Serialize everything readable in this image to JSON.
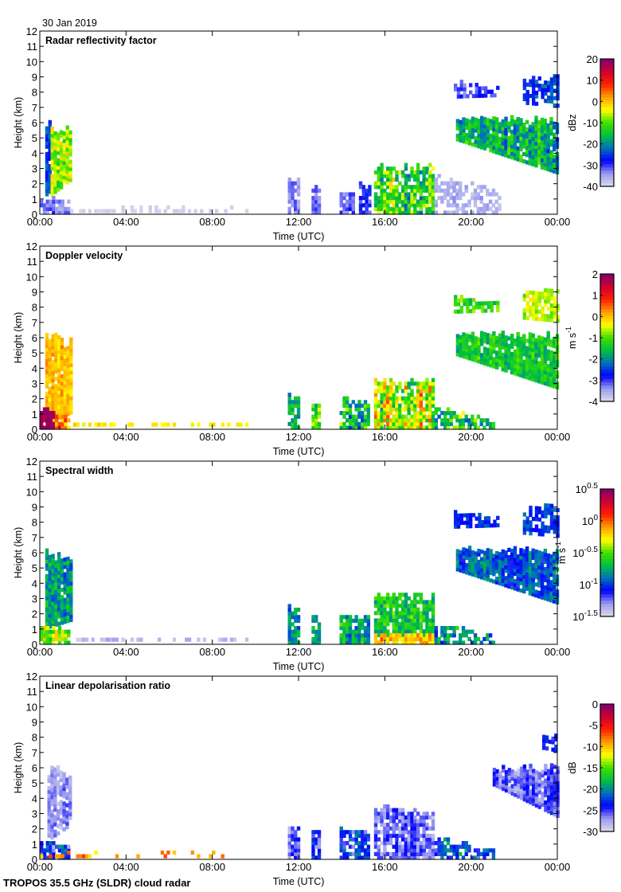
{
  "figure": {
    "date": "30 Jan 2019",
    "footer": "TROPOS 35.5 GHz (SLDR) cloud radar"
  },
  "chart_data": [
    {
      "type": "heatmap",
      "title": "Radar reflectivity factor",
      "xlabel": "Time (UTC)",
      "ylabel": "Height (km)",
      "xlim": [
        0,
        24
      ],
      "ylim": [
        0,
        12
      ],
      "xticks": [
        0,
        4,
        8,
        12,
        16,
        20,
        24
      ],
      "xtick_labels": [
        "00:00",
        "04:00",
        "08:00",
        "12:00",
        "16:00",
        "20:00",
        "00:00"
      ],
      "yticks": [
        0,
        1,
        2,
        3,
        4,
        5,
        6,
        7,
        8,
        9,
        10,
        11,
        12
      ],
      "ytick_labels": [
        "0",
        "1",
        "2",
        "3",
        "4",
        "5",
        "6",
        "7",
        "8",
        "9",
        "10",
        "11",
        "12"
      ],
      "colorbar": {
        "unit": {
          "text": "dBz",
          "sup": ""
        },
        "range": [
          -40,
          20
        ],
        "ticks": [
          20,
          10,
          0,
          -10,
          -20,
          -30,
          -40
        ],
        "tick_labels": [
          {
            "text": "20",
            "sup": ""
          },
          {
            "text": "10",
            "sup": ""
          },
          {
            "text": "0",
            "sup": ""
          },
          {
            "text": "-10",
            "sup": ""
          },
          {
            "text": "-20",
            "sup": ""
          },
          {
            "text": "-30",
            "sup": ""
          },
          {
            "text": "-40",
            "sup": ""
          }
        ]
      },
      "echoes_format": "[t_start_h, t_end_h, base_start_km, top_start_km, base_end_km, top_end_km, mean_value, noise, fill]",
      "echoes": [
        [
          0.25,
          0.5,
          1.2,
          6.3,
          1.5,
          6.2,
          -24,
          8,
          0.9
        ],
        [
          0.5,
          1.4,
          1.2,
          6.1,
          2.2,
          5.8,
          -8,
          12,
          0.95
        ],
        [
          0.0,
          1.4,
          0.0,
          1.1,
          0.0,
          0.8,
          -32,
          6,
          0.8
        ],
        [
          1.4,
          9.6,
          0.1,
          0.35,
          0.1,
          0.35,
          -39,
          1,
          0.5
        ],
        [
          11.5,
          12.0,
          0.0,
          2.6,
          0.0,
          2.2,
          -33,
          5,
          0.8
        ],
        [
          12.6,
          13.0,
          0.0,
          2.0,
          0.0,
          1.6,
          -32,
          5,
          0.8
        ],
        [
          13.9,
          14.5,
          0.0,
          1.5,
          0.0,
          1.5,
          -31,
          5,
          0.8
        ],
        [
          14.8,
          15.3,
          0.0,
          2.1,
          0.0,
          1.8,
          -28,
          8,
          0.8
        ],
        [
          15.5,
          18.3,
          0.0,
          3.2,
          0.0,
          3.3,
          -12,
          16,
          0.85
        ],
        [
          18.3,
          21.3,
          0.0,
          2.6,
          0.0,
          1.5,
          -36,
          4,
          0.6
        ],
        [
          19.2,
          21.3,
          7.6,
          8.7,
          7.7,
          8.2,
          -30,
          6,
          0.7
        ],
        [
          19.3,
          24.0,
          4.8,
          6.3,
          2.6,
          6.3,
          -18,
          12,
          0.95
        ],
        [
          22.4,
          24.0,
          7.2,
          9.0,
          7.0,
          9.2,
          -26,
          8,
          0.7
        ]
      ]
    },
    {
      "type": "heatmap",
      "title": "Doppler velocity",
      "xlabel": "Time (UTC)",
      "ylabel": "Height (km)",
      "xlim": [
        0,
        24
      ],
      "ylim": [
        0,
        12
      ],
      "xticks": [
        0,
        4,
        8,
        12,
        16,
        20,
        24
      ],
      "xtick_labels": [
        "00:00",
        "04:00",
        "08:00",
        "12:00",
        "16:00",
        "20:00",
        "00:00"
      ],
      "yticks": [
        0,
        1,
        2,
        3,
        4,
        5,
        6,
        7,
        8,
        9,
        10,
        11,
        12
      ],
      "ytick_labels": [
        "0",
        "1",
        "2",
        "3",
        "4",
        "5",
        "6",
        "7",
        "8",
        "9",
        "10",
        "11",
        "12"
      ],
      "colorbar": {
        "unit": {
          "text": "m s",
          "sup": "-1"
        },
        "range": [
          -4,
          2
        ],
        "ticks": [
          2,
          1,
          0,
          -1,
          -2,
          -3,
          -4
        ],
        "tick_labels": [
          {
            "text": "2",
            "sup": ""
          },
          {
            "text": "1",
            "sup": ""
          },
          {
            "text": "0",
            "sup": ""
          },
          {
            "text": "-1",
            "sup": ""
          },
          {
            "text": "-2",
            "sup": ""
          },
          {
            "text": "-3",
            "sup": ""
          },
          {
            "text": "-4",
            "sup": ""
          }
        ]
      },
      "echoes_format": "[t_start_h, t_end_h, base_start_km, top_start_km, base_end_km, top_end_km, mean_value, noise, fill]",
      "echoes": [
        [
          0.25,
          1.4,
          0.3,
          6.4,
          1.0,
          6.1,
          0.0,
          0.6,
          0.95
        ],
        [
          0.0,
          0.7,
          0.0,
          1.3,
          0.0,
          1.3,
          1.8,
          0.4,
          0.9
        ],
        [
          0.7,
          1.4,
          0.0,
          1.0,
          0.0,
          0.8,
          0.3,
          1.5,
          0.8
        ],
        [
          1.4,
          9.6,
          0.2,
          0.4,
          0.2,
          0.4,
          -0.3,
          0.4,
          0.5
        ],
        [
          11.5,
          12.0,
          0.0,
          2.7,
          0.0,
          2.2,
          -1.6,
          1.0,
          0.8
        ],
        [
          12.6,
          13.0,
          0.0,
          2.0,
          0.0,
          1.6,
          -1.2,
          1.4,
          0.8
        ],
        [
          13.9,
          15.3,
          0.0,
          2.0,
          0.0,
          1.8,
          -1.5,
          1.8,
          0.8
        ],
        [
          15.5,
          18.3,
          0.0,
          3.3,
          0.0,
          3.3,
          -0.6,
          1.8,
          0.85
        ],
        [
          18.3,
          21.0,
          0.0,
          1.5,
          0.0,
          0.6,
          -1.5,
          1.6,
          0.6
        ],
        [
          19.2,
          21.3,
          7.6,
          8.7,
          7.7,
          8.2,
          -1.2,
          0.8,
          0.7
        ],
        [
          19.3,
          24.0,
          4.8,
          6.3,
          2.6,
          6.3,
          -1.4,
          0.8,
          0.95
        ],
        [
          22.4,
          24.0,
          7.2,
          9.0,
          7.0,
          9.2,
          -0.6,
          0.6,
          0.7
        ]
      ]
    },
    {
      "type": "heatmap",
      "title": "Spectral width",
      "xlabel": "Time (UTC)",
      "ylabel": "Height (km)",
      "xlim": [
        0,
        24
      ],
      "ylim": [
        0,
        12
      ],
      "xticks": [
        0,
        4,
        8,
        12,
        16,
        20,
        24
      ],
      "xtick_labels": [
        "00:00",
        "04:00",
        "08:00",
        "12:00",
        "16:00",
        "20:00",
        "00:00"
      ],
      "yticks": [
        0,
        1,
        2,
        3,
        4,
        5,
        6,
        7,
        8,
        9,
        10,
        11,
        12
      ],
      "ytick_labels": [
        "0",
        "1",
        "2",
        "3",
        "4",
        "5",
        "6",
        "7",
        "8",
        "9",
        "10",
        "11",
        "12"
      ],
      "colorbar": {
        "unit": {
          "text": "m s",
          "sup": "-1"
        },
        "scale": "log10",
        "range": [
          -1.5,
          0.5
        ],
        "ticks": [
          0.5,
          0,
          -0.5,
          -1,
          -1.5
        ],
        "tick_labels": [
          {
            "text": "10",
            "sup": "0.5"
          },
          {
            "text": "10",
            "sup": "0"
          },
          {
            "text": "10",
            "sup": "-0.5"
          },
          {
            "text": "10",
            "sup": "-1"
          },
          {
            "text": "10",
            "sup": "-1.5"
          }
        ]
      },
      "echoes_format": "[t_start_h, t_end_h, base_start_km, top_start_km, base_end_km, top_end_km, mean_value, noise, fill]",
      "echoes": [
        [
          0.25,
          1.4,
          1.0,
          6.4,
          1.5,
          6.1,
          -0.85,
          0.35,
          0.95
        ],
        [
          0.0,
          1.4,
          0.0,
          1.2,
          0.0,
          0.9,
          -0.45,
          0.4,
          0.9
        ],
        [
          1.4,
          9.6,
          0.2,
          0.4,
          0.2,
          0.4,
          -1.4,
          0.15,
          0.5
        ],
        [
          11.5,
          12.0,
          0.0,
          2.7,
          0.0,
          2.2,
          -0.8,
          0.35,
          0.8
        ],
        [
          12.6,
          13.0,
          0.0,
          2.0,
          0.0,
          1.6,
          -0.8,
          0.35,
          0.8
        ],
        [
          13.9,
          15.3,
          0.0,
          2.0,
          0.0,
          1.8,
          -0.7,
          0.4,
          0.8
        ],
        [
          15.5,
          18.3,
          0.5,
          3.3,
          0.5,
          3.3,
          -0.65,
          0.35,
          0.85
        ],
        [
          15.5,
          18.3,
          0.0,
          0.6,
          0.0,
          0.6,
          -0.15,
          0.3,
          0.95
        ],
        [
          18.3,
          21.0,
          0.0,
          1.5,
          0.0,
          0.6,
          -0.8,
          0.4,
          0.6
        ],
        [
          19.2,
          21.3,
          7.6,
          8.7,
          7.7,
          8.2,
          -1.05,
          0.2,
          0.75
        ],
        [
          19.3,
          24.0,
          4.8,
          6.3,
          2.6,
          6.3,
          -0.95,
          0.3,
          0.95
        ],
        [
          22.4,
          24.0,
          7.2,
          9.0,
          7.0,
          9.2,
          -1.0,
          0.2,
          0.7
        ]
      ]
    },
    {
      "type": "heatmap",
      "title": "Linear depolarisation ratio",
      "xlabel": "Time (UTC)",
      "ylabel": "Height (km)",
      "xlim": [
        0,
        24
      ],
      "ylim": [
        0,
        12
      ],
      "xticks": [
        0,
        4,
        8,
        12,
        16,
        20,
        24
      ],
      "xtick_labels": [
        "00:00",
        "04:00",
        "08:00",
        "12:00",
        "16:00",
        "20:00",
        "00:00"
      ],
      "yticks": [
        0,
        1,
        2,
        3,
        4,
        5,
        6,
        7,
        8,
        9,
        10,
        11,
        12
      ],
      "ytick_labels": [
        "0",
        "1",
        "2",
        "3",
        "4",
        "5",
        "6",
        "7",
        "8",
        "9",
        "10",
        "11",
        "12"
      ],
      "colorbar": {
        "unit": {
          "text": "dB",
          "sup": ""
        },
        "range": [
          -30,
          0
        ],
        "ticks": [
          0,
          -5,
          -10,
          -15,
          -20,
          -25,
          -30
        ],
        "tick_labels": [
          {
            "text": "0",
            "sup": ""
          },
          {
            "text": "-5",
            "sup": ""
          },
          {
            "text": "-10",
            "sup": ""
          },
          {
            "text": "-15",
            "sup": ""
          },
          {
            "text": "-20",
            "sup": ""
          },
          {
            "text": "-25",
            "sup": ""
          },
          {
            "text": "-30",
            "sup": ""
          }
        ]
      },
      "echoes_format": "[t_start_h, t_end_h, base_start_km, top_start_km, base_end_km, top_end_km, mean_value, noise, fill]",
      "echoes": [
        [
          0.35,
          1.4,
          1.2,
          6.3,
          2.2,
          5.8,
          -27,
          3,
          0.85
        ],
        [
          0.0,
          1.4,
          0.0,
          1.2,
          0.0,
          0.8,
          -24,
          6,
          0.8
        ],
        [
          0.0,
          9.6,
          0.1,
          0.35,
          0.1,
          0.35,
          -9,
          6,
          0.3
        ],
        [
          11.5,
          12.0,
          0.0,
          2.4,
          0.0,
          2.0,
          -26,
          4,
          0.8
        ],
        [
          12.6,
          13.0,
          0.0,
          2.0,
          0.0,
          1.6,
          -24,
          5,
          0.8
        ],
        [
          13.9,
          15.3,
          0.0,
          2.0,
          0.0,
          1.8,
          -23,
          6,
          0.8
        ],
        [
          15.5,
          18.3,
          0.0,
          3.5,
          0.0,
          3.3,
          -26,
          4,
          0.85
        ],
        [
          18.3,
          21.0,
          0.0,
          1.5,
          0.0,
          0.6,
          -22,
          6,
          0.5
        ],
        [
          21.0,
          24.0,
          4.8,
          6.0,
          2.7,
          6.2,
          -26,
          4,
          0.95
        ],
        [
          23.3,
          24.0,
          7.2,
          8.2,
          7.0,
          8.2,
          -24,
          3,
          0.7
        ]
      ]
    }
  ],
  "colors": {
    "colormap": [
      "#dcdcea",
      "#9c9cf0",
      "#0000ff",
      "#0070c0",
      "#00c040",
      "#40e000",
      "#ffff00",
      "#ffa000",
      "#ff2000",
      "#d00030",
      "#800070"
    ]
  }
}
